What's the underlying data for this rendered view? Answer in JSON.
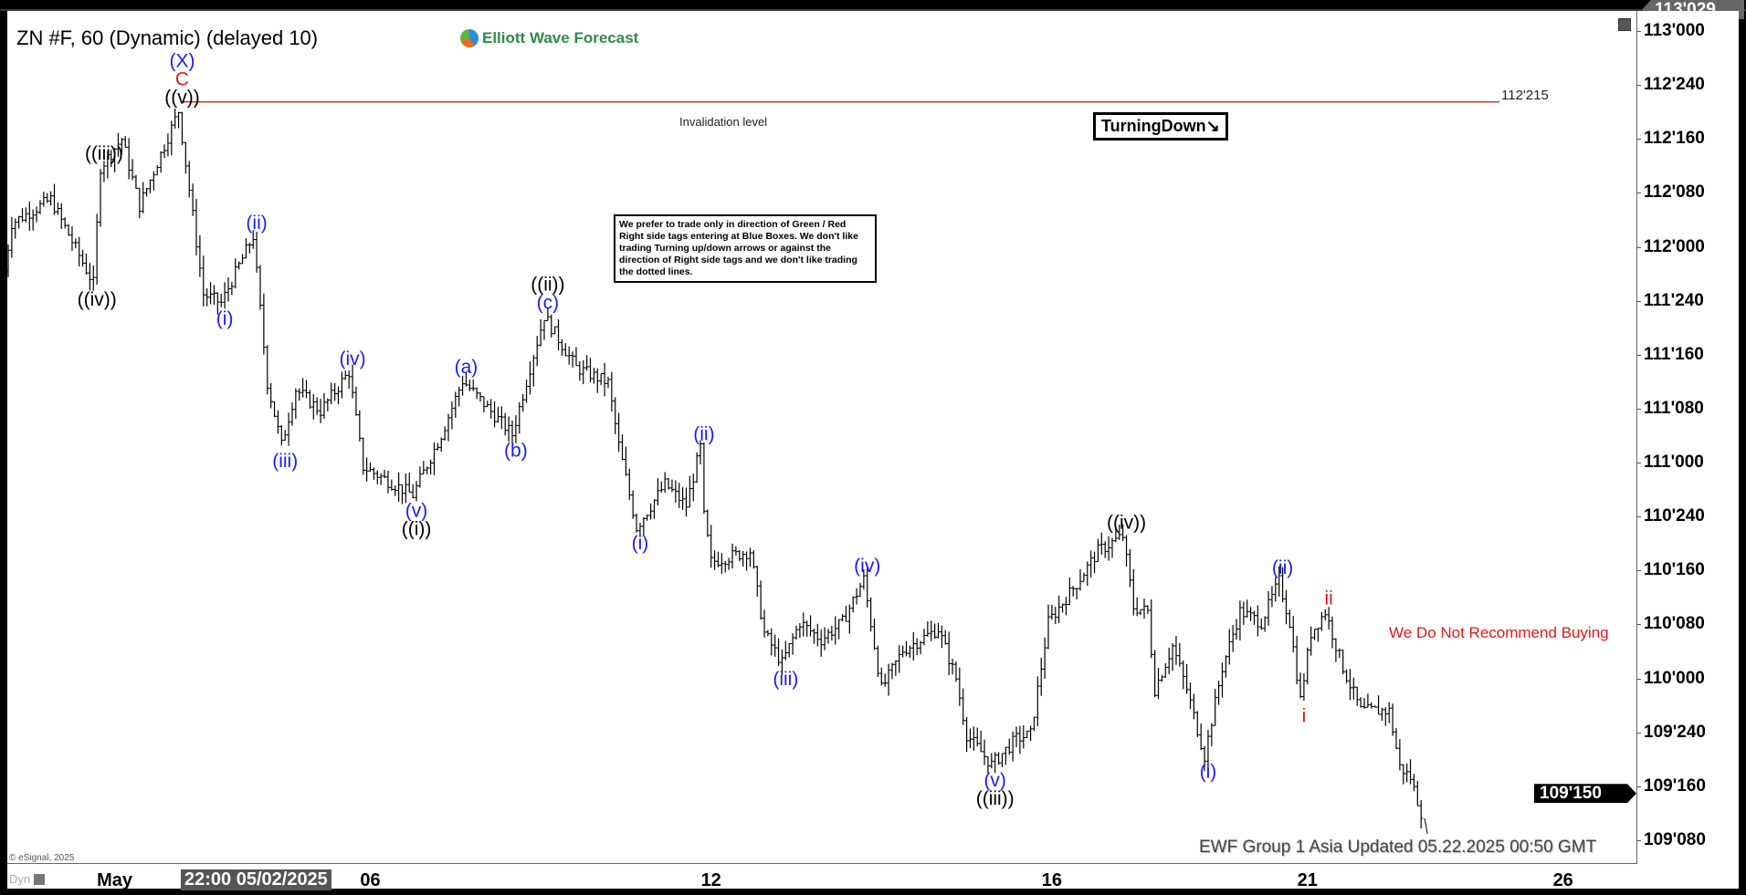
{
  "header": {
    "title": "ZN #F, 60 (Dynamic) (delayed 10)",
    "logo_text": "Elliott Wave Forecast"
  },
  "annotations": {
    "notice": "We prefer to trade only in direction of Green / Red Right side tags entering at Blue Boxes. We don't like trading Turning up/down arrows or against the direction of Right side tags and we don't like trading the dotted lines.",
    "turning": "TurningDown",
    "turning_icon": "arrow-down-right-icon",
    "no_recommend": "We Do Not Recommend Buying",
    "invalidation_label": "Invalidation level",
    "invalidation_value": "112'215",
    "footer": "EWF Group 1 Asia Updated 05.22.2025 00:50 GMT",
    "copyright": "© eSignal, 2025",
    "dyn": "Dyn"
  },
  "colors": {
    "wave_blue": "#1a1aff",
    "wave_red": "#e01a1a",
    "wave_black": "#000000",
    "invalidation_line": "#d42020"
  },
  "chart_data": {
    "type": "ohlc-bar",
    "symbol": "ZN #F",
    "interval": "60",
    "y_ticks": [
      "113'000",
      "112'240",
      "112'160",
      "112'080",
      "112'000",
      "111'240",
      "111'160",
      "111'080",
      "111'000",
      "110'240",
      "110'160",
      "110'080",
      "110'000",
      "109'240",
      "109'160",
      "109'080"
    ],
    "y_range": [
      109.16,
      113.12
    ],
    "x_ticks": [
      {
        "label": "May",
        "date": "05-01"
      },
      {
        "label": "06",
        "date": "05-06"
      },
      {
        "label": "12",
        "date": "05-12"
      },
      {
        "label": "16",
        "date": "05-16"
      },
      {
        "label": "21",
        "date": "05-21"
      },
      {
        "label": "26",
        "date": "05-26"
      }
    ],
    "crosshair_date": "22:00 05/02/2025",
    "top_price_tag": "113'029",
    "last_price_tag": "109'150",
    "invalidation_price": 112.672,
    "price_path": [
      [
        "04-29 17:00",
        111.78
      ],
      [
        "04-29 20:00",
        112.11
      ],
      [
        "04-30 07:00",
        112.22
      ],
      [
        "04-30 19:00",
        111.83
      ],
      [
        "04-30 21:00",
        112.37
      ],
      [
        "05-01 03:00",
        112.5
      ],
      [
        "05-01 08:00",
        112.19
      ],
      [
        "05-01 19:00",
        112.63
      ],
      [
        "05-02 02:00",
        111.78
      ],
      [
        "05-02 07:00",
        111.74
      ],
      [
        "05-02 16:00",
        112.05
      ],
      [
        "05-02 20:00",
        111.37
      ],
      [
        "05-05 00:00",
        111.08
      ],
      [
        "05-05 04:00",
        111.34
      ],
      [
        "05-05 11:00",
        111.24
      ],
      [
        "05-05 19:00",
        111.42
      ],
      [
        "05-05 23:00",
        110.98
      ],
      [
        "05-06 13:00",
        110.85
      ],
      [
        "05-06 21:00",
        111.13
      ],
      [
        "05-07 03:00",
        111.38
      ],
      [
        "05-07 17:00",
        111.13
      ],
      [
        "05-07 22:00",
        111.44
      ],
      [
        "05-08 02:00",
        111.68
      ],
      [
        "05-08 11:00",
        111.44
      ],
      [
        "05-08 20:00",
        111.37
      ],
      [
        "05-08 23:00",
        111.08
      ],
      [
        "05-09 04:00",
        110.7
      ],
      [
        "05-09 12:00",
        110.9
      ],
      [
        "05-09 18:00",
        110.8
      ],
      [
        "05-09 22:00",
        111.07
      ],
      [
        "05-09 23:00",
        110.75
      ],
      [
        "05-12 01:00",
        110.54
      ],
      [
        "05-12 12:00",
        110.59
      ],
      [
        "05-12 16:00",
        110.21
      ],
      [
        "05-12 21:00",
        110.07
      ],
      [
        "05-13 02:00",
        110.26
      ],
      [
        "05-13 08:00",
        110.18
      ],
      [
        "05-13 14:00",
        110.26
      ],
      [
        "05-13 20:00",
        110.46
      ],
      [
        "05-14 01:00",
        109.95
      ],
      [
        "05-14 07:00",
        110.13
      ],
      [
        "05-14 17:00",
        110.23
      ],
      [
        "05-14 22:00",
        110.0
      ],
      [
        "05-15 01:00",
        109.74
      ],
      [
        "05-15 08:00",
        109.6
      ],
      [
        "05-15 15:00",
        109.72
      ],
      [
        "05-15 19:00",
        109.74
      ],
      [
        "05-16 00:00",
        110.26
      ],
      [
        "05-16 08:00",
        110.44
      ],
      [
        "05-16 14:00",
        110.59
      ],
      [
        "05-16 21:00",
        110.66
      ],
      [
        "05-19 00:00",
        110.33
      ],
      [
        "05-19 04:00",
        110.31
      ],
      [
        "05-19 06:00",
        109.95
      ],
      [
        "05-19 11:00",
        110.15
      ],
      [
        "05-19 15:00",
        109.95
      ],
      [
        "05-19 20:00",
        109.64
      ],
      [
        "05-20 01:00",
        110.05
      ],
      [
        "05-20 06:00",
        110.31
      ],
      [
        "05-20 12:00",
        110.26
      ],
      [
        "05-20 17:00",
        110.45
      ],
      [
        "05-20 20:00",
        110.26
      ],
      [
        "05-20 23:00",
        109.9
      ],
      [
        "05-21 02:00",
        110.21
      ],
      [
        "05-21 06:00",
        110.31
      ],
      [
        "05-21 11:00",
        110.05
      ],
      [
        "05-21 16:00",
        109.85
      ],
      [
        "05-22 00:00",
        109.85
      ],
      [
        "05-22 03:00",
        109.59
      ],
      [
        "05-22 06:00",
        109.54
      ],
      [
        "05-22 09:00",
        109.38
      ]
    ],
    "wave_labels": [
      {
        "date": "05-01 19:00",
        "price": 112.63,
        "pos": "above",
        "lines": [
          {
            "t": "(X)",
            "c": "blue"
          },
          {
            "t": "C",
            "c": "red"
          },
          {
            "t": "((v))",
            "c": "black"
          }
        ]
      },
      {
        "date": "04-30 21:00",
        "price": 112.37,
        "pos": "above",
        "lines": [
          {
            "t": "((iii))",
            "c": "black"
          }
        ]
      },
      {
        "date": "04-30 19:00",
        "price": 111.83,
        "pos": "below",
        "lines": [
          {
            "t": "((iv))",
            "c": "black"
          }
        ]
      },
      {
        "date": "05-02 07:00",
        "price": 111.74,
        "pos": "below",
        "lines": [
          {
            "t": "(i)",
            "c": "blue"
          }
        ]
      },
      {
        "date": "05-02 16:00",
        "price": 112.05,
        "pos": "above",
        "lines": [
          {
            "t": "(ii)",
            "c": "blue"
          }
        ]
      },
      {
        "date": "05-05 00:00",
        "price": 111.08,
        "pos": "below",
        "lines": [
          {
            "t": "(iii)",
            "c": "blue"
          }
        ]
      },
      {
        "date": "05-05 19:00",
        "price": 111.42,
        "pos": "above",
        "lines": [
          {
            "t": "(iv)",
            "c": "blue"
          }
        ]
      },
      {
        "date": "05-06 13:00",
        "price": 110.85,
        "pos": "below",
        "lines": [
          {
            "t": "(v)",
            "c": "blue"
          },
          {
            "t": "((i))",
            "c": "black"
          }
        ]
      },
      {
        "date": "05-07 03:00",
        "price": 111.38,
        "pos": "above",
        "lines": [
          {
            "t": "(a)",
            "c": "blue"
          }
        ]
      },
      {
        "date": "05-07 17:00",
        "price": 111.13,
        "pos": "below",
        "lines": [
          {
            "t": "(b)",
            "c": "blue"
          }
        ]
      },
      {
        "date": "05-08 02:00",
        "price": 111.68,
        "pos": "above",
        "lines": [
          {
            "t": "((ii))",
            "c": "black"
          },
          {
            "t": "(c)",
            "c": "blue"
          }
        ]
      },
      {
        "date": "05-09 04:00",
        "price": 110.7,
        "pos": "below",
        "lines": [
          {
            "t": "(i)",
            "c": "blue"
          }
        ]
      },
      {
        "date": "05-09 22:00",
        "price": 111.07,
        "pos": "above",
        "lines": [
          {
            "t": "(ii)",
            "c": "blue"
          }
        ]
      },
      {
        "date": "05-12 21:00",
        "price": 110.07,
        "pos": "below",
        "lines": [
          {
            "t": "(iii)",
            "c": "blue"
          }
        ]
      },
      {
        "date": "05-13 20:00",
        "price": 110.46,
        "pos": "above",
        "lines": [
          {
            "t": "(iv)",
            "c": "blue"
          }
        ]
      },
      {
        "date": "05-15 08:00",
        "price": 109.6,
        "pos": "below",
        "lines": [
          {
            "t": "(v)",
            "c": "blue"
          },
          {
            "t": "((iii))",
            "c": "black"
          }
        ]
      },
      {
        "date": "05-16 21:00",
        "price": 110.66,
        "pos": "above",
        "lines": [
          {
            "t": "((iv))",
            "c": "black"
          }
        ]
      },
      {
        "date": "05-19 20:00",
        "price": 109.64,
        "pos": "below",
        "lines": [
          {
            "t": "(i)",
            "c": "blue"
          }
        ]
      },
      {
        "date": "05-20 17:00",
        "price": 110.45,
        "pos": "above",
        "lines": [
          {
            "t": "(ii)",
            "c": "blue"
          }
        ]
      },
      {
        "date": "05-20 23:00",
        "price": 109.9,
        "pos": "below",
        "lines": [
          {
            "t": "i",
            "c": "red"
          }
        ]
      },
      {
        "date": "05-21 06:00",
        "price": 110.31,
        "pos": "above",
        "lines": [
          {
            "t": "ii",
            "c": "red"
          }
        ]
      }
    ]
  }
}
